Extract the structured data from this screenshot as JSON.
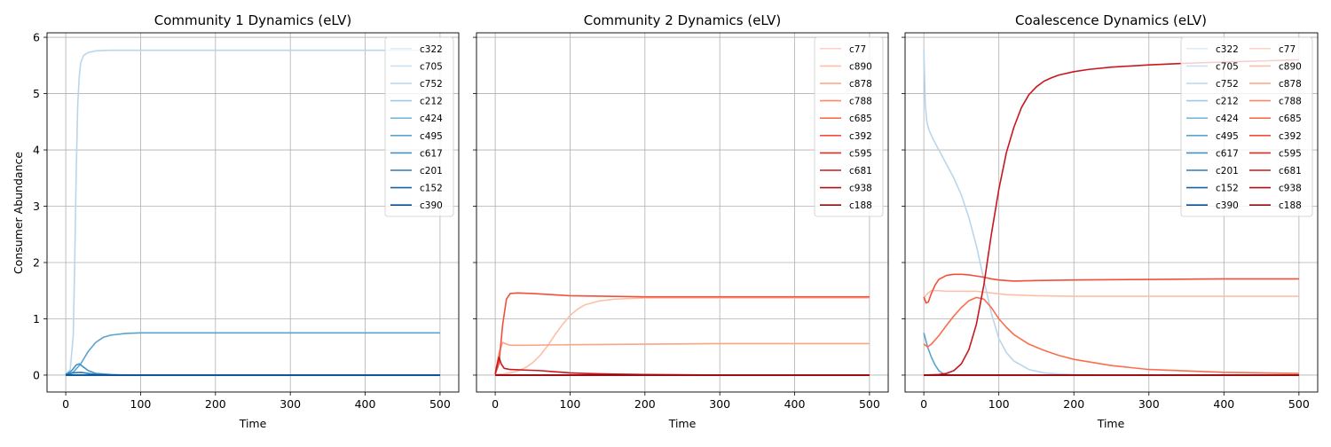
{
  "chart_data": [
    {
      "type": "line",
      "title": "Community 1 Dynamics (eLV)",
      "xlabel": "Time",
      "ylabel": "Consumer Abundance",
      "xlim": [
        -25,
        525
      ],
      "ylim": [
        -0.3,
        6.08
      ],
      "xticks": [
        0,
        100,
        200,
        300,
        400,
        500
      ],
      "xtick_labels": [
        "0",
        "100",
        "200",
        "300",
        "400",
        "500"
      ],
      "yticks": [
        0,
        1,
        2,
        3,
        4,
        5,
        6
      ],
      "ytick_labels": [
        "0",
        "1",
        "2",
        "3",
        "4",
        "5",
        "6"
      ],
      "grid": true,
      "legend": {
        "position": "top-right",
        "columns": 1
      },
      "series": [
        {
          "name": "c322",
          "color": "#deebf7",
          "x": [
            0,
            500
          ],
          "y": [
            0,
            0
          ]
        },
        {
          "name": "c705",
          "color": "#cddff1",
          "x": [
            0,
            500
          ],
          "y": [
            0,
            0
          ]
        },
        {
          "name": "c752",
          "color": "#bad6eb",
          "x": [
            0,
            6,
            10,
            12,
            14,
            16,
            18,
            20,
            24,
            30,
            40,
            60,
            80,
            100,
            200,
            300,
            400,
            500
          ],
          "y": [
            0.01,
            0.1,
            0.7,
            2.0,
            3.6,
            4.8,
            5.3,
            5.55,
            5.68,
            5.73,
            5.76,
            5.77,
            5.77,
            5.77,
            5.77,
            5.77,
            5.77,
            5.77
          ]
        },
        {
          "name": "c212",
          "color": "#9ecae1",
          "x": [
            0,
            500
          ],
          "y": [
            0,
            0
          ]
        },
        {
          "name": "c424",
          "color": "#7db8da",
          "x": [
            0,
            500
          ],
          "y": [
            0,
            0
          ]
        },
        {
          "name": "c495",
          "color": "#5ba3cf",
          "x": [
            0,
            10,
            20,
            30,
            40,
            50,
            60,
            80,
            100,
            150,
            200,
            300,
            400,
            500
          ],
          "y": [
            0.01,
            0.05,
            0.2,
            0.42,
            0.58,
            0.67,
            0.71,
            0.74,
            0.75,
            0.75,
            0.75,
            0.75,
            0.75,
            0.75
          ]
        },
        {
          "name": "c617",
          "color": "#4192c5",
          "x": [
            0,
            8,
            14,
            18,
            24,
            30,
            40,
            60,
            80,
            500
          ],
          "y": [
            0.01,
            0.08,
            0.18,
            0.2,
            0.14,
            0.08,
            0.03,
            0.01,
            0,
            0
          ]
        },
        {
          "name": "c201",
          "color": "#2b7bba",
          "x": [
            0,
            10,
            20,
            30,
            40,
            60,
            500
          ],
          "y": [
            0.01,
            0.04,
            0.05,
            0.03,
            0.01,
            0,
            0
          ]
        },
        {
          "name": "c152",
          "color": "#1764ab",
          "x": [
            0,
            500
          ],
          "y": [
            0,
            0
          ]
        },
        {
          "name": "c390",
          "color": "#084d96",
          "x": [
            0,
            500
          ],
          "y": [
            0,
            0
          ]
        }
      ]
    },
    {
      "type": "line",
      "title": "Community 2 Dynamics (eLV)",
      "xlabel": "Time",
      "ylabel": "",
      "xlim": [
        -25,
        525
      ],
      "ylim": [
        -0.3,
        6.08
      ],
      "xticks": [
        0,
        100,
        200,
        300,
        400,
        500
      ],
      "xtick_labels": [
        "0",
        "100",
        "200",
        "300",
        "400",
        "500"
      ],
      "yticks": [
        0,
        1,
        2,
        3,
        4,
        5,
        6
      ],
      "ytick_labels": [
        "",
        "",
        "",
        "",
        "",
        "",
        ""
      ],
      "grid": true,
      "legend": {
        "position": "top-right",
        "columns": 1
      },
      "series": [
        {
          "name": "c77",
          "color": "#fdd5c4",
          "x": [
            0,
            500
          ],
          "y": [
            0,
            0
          ]
        },
        {
          "name": "c890",
          "color": "#fcbfa7",
          "x": [
            0,
            10,
            20,
            30,
            40,
            50,
            60,
            70,
            80,
            90,
            100,
            110,
            120,
            140,
            160,
            180,
            200,
            300,
            400,
            500
          ],
          "y": [
            0.01,
            0.02,
            0.04,
            0.07,
            0.13,
            0.22,
            0.35,
            0.52,
            0.72,
            0.9,
            1.06,
            1.17,
            1.25,
            1.32,
            1.35,
            1.36,
            1.37,
            1.37,
            1.37,
            1.37
          ]
        },
        {
          "name": "c878",
          "color": "#fca486",
          "x": [
            0,
            5,
            10,
            15,
            20,
            40,
            100,
            200,
            300,
            400,
            500
          ],
          "y": [
            0.02,
            0.4,
            0.58,
            0.55,
            0.53,
            0.53,
            0.54,
            0.55,
            0.56,
            0.56,
            0.56
          ]
        },
        {
          "name": "c788",
          "color": "#fc8a6a",
          "x": [
            0,
            500
          ],
          "y": [
            0,
            0
          ]
        },
        {
          "name": "c685",
          "color": "#f96e4e",
          "x": [
            0,
            500
          ],
          "y": [
            0,
            0
          ]
        },
        {
          "name": "c392",
          "color": "#f14f39",
          "x": [
            0,
            5,
            10,
            15,
            20,
            30,
            50,
            100,
            200,
            300,
            400,
            500
          ],
          "y": [
            0.02,
            0.2,
            0.9,
            1.35,
            1.45,
            1.46,
            1.45,
            1.41,
            1.39,
            1.39,
            1.39,
            1.39
          ]
        },
        {
          "name": "c595",
          "color": "#de2b25",
          "x": [
            0,
            500
          ],
          "y": [
            0,
            0
          ]
        },
        {
          "name": "c681",
          "color": "#c8181d",
          "x": [
            0,
            2,
            5,
            8,
            12,
            20,
            40,
            60,
            80,
            100,
            120,
            150,
            200,
            300,
            500
          ],
          "y": [
            0.02,
            0.15,
            0.32,
            0.2,
            0.12,
            0.1,
            0.09,
            0.08,
            0.06,
            0.04,
            0.03,
            0.02,
            0.01,
            0,
            0
          ]
        },
        {
          "name": "c938",
          "color": "#b11117",
          "x": [
            0,
            500
          ],
          "y": [
            0,
            0
          ]
        },
        {
          "name": "c188",
          "color": "#900a12",
          "x": [
            0,
            500
          ],
          "y": [
            0,
            0
          ]
        }
      ]
    },
    {
      "type": "line",
      "title": "Coalescence Dynamics (eLV)",
      "xlabel": "Time",
      "ylabel": "",
      "xlim": [
        -25,
        525
      ],
      "ylim": [
        -0.3,
        6.08
      ],
      "xticks": [
        0,
        100,
        200,
        300,
        400,
        500
      ],
      "xtick_labels": [
        "0",
        "100",
        "200",
        "300",
        "400",
        "500"
      ],
      "yticks": [
        0,
        1,
        2,
        3,
        4,
        5,
        6
      ],
      "ytick_labels": [
        "",
        "",
        "",
        "",
        "",
        "",
        ""
      ],
      "grid": true,
      "legend": {
        "position": "top-right",
        "columns": 2
      },
      "series": [
        {
          "name": "c322",
          "color": "#deebf7",
          "x": [
            0,
            500
          ],
          "y": [
            0,
            0
          ]
        },
        {
          "name": "c705",
          "color": "#cddff1",
          "x": [
            0,
            500
          ],
          "y": [
            0,
            0
          ]
        },
        {
          "name": "c752",
          "color": "#bad6eb",
          "x": [
            0,
            1,
            2,
            4,
            7,
            12,
            20,
            30,
            40,
            50,
            60,
            70,
            80,
            90,
            100,
            110,
            120,
            140,
            160,
            180,
            200,
            250,
            500
          ],
          "y": [
            5.77,
            5.3,
            4.8,
            4.5,
            4.35,
            4.2,
            4.0,
            3.75,
            3.5,
            3.2,
            2.8,
            2.3,
            1.7,
            1.1,
            0.65,
            0.4,
            0.25,
            0.1,
            0.04,
            0.02,
            0.01,
            0,
            0
          ]
        },
        {
          "name": "c212",
          "color": "#9ecae1",
          "x": [
            0,
            500
          ],
          "y": [
            0,
            0
          ]
        },
        {
          "name": "c424",
          "color": "#7db8da",
          "x": [
            0,
            500
          ],
          "y": [
            0,
            0
          ]
        },
        {
          "name": "c495",
          "color": "#5ba3cf",
          "x": [
            0,
            5,
            10,
            15,
            20,
            25,
            30,
            40,
            500
          ],
          "y": [
            0.75,
            0.5,
            0.32,
            0.18,
            0.08,
            0.03,
            0.01,
            0,
            0
          ]
        },
        {
          "name": "c617",
          "color": "#4192c5",
          "x": [
            0,
            500
          ],
          "y": [
            0,
            0
          ]
        },
        {
          "name": "c201",
          "color": "#2b7bba",
          "x": [
            0,
            500
          ],
          "y": [
            0,
            0
          ]
        },
        {
          "name": "c152",
          "color": "#1764ab",
          "x": [
            0,
            500
          ],
          "y": [
            0,
            0
          ]
        },
        {
          "name": "c390",
          "color": "#084d96",
          "x": [
            0,
            500
          ],
          "y": [
            0,
            0
          ]
        },
        {
          "name": "c77",
          "color": "#fdd5c4",
          "x": [
            0,
            500
          ],
          "y": [
            0,
            0
          ]
        },
        {
          "name": "c890",
          "color": "#fcbfa7",
          "x": [
            0,
            5,
            10,
            20,
            30,
            50,
            70,
            90,
            110,
            150,
            200,
            300,
            400,
            500
          ],
          "y": [
            1.37,
            1.45,
            1.5,
            1.5,
            1.49,
            1.49,
            1.49,
            1.46,
            1.43,
            1.41,
            1.4,
            1.4,
            1.4,
            1.4
          ]
        },
        {
          "name": "c878",
          "color": "#fca486",
          "x": [
            0,
            500
          ],
          "y": [
            0,
            0
          ]
        },
        {
          "name": "c788",
          "color": "#fc8a6a",
          "x": [
            0,
            500
          ],
          "y": [
            0,
            0
          ]
        },
        {
          "name": "c685",
          "color": "#f96e4e",
          "x": [
            0,
            5,
            10,
            20,
            30,
            40,
            50,
            60,
            70,
            80,
            90,
            100,
            110,
            120,
            140,
            160,
            180,
            200,
            250,
            300,
            400,
            500
          ],
          "y": [
            0.55,
            0.5,
            0.55,
            0.7,
            0.88,
            1.05,
            1.2,
            1.32,
            1.38,
            1.35,
            1.2,
            1.0,
            0.85,
            0.72,
            0.55,
            0.44,
            0.35,
            0.28,
            0.17,
            0.1,
            0.05,
            0.03
          ]
        },
        {
          "name": "c392",
          "color": "#f14f39",
          "x": [
            0,
            3,
            6,
            10,
            15,
            20,
            30,
            40,
            50,
            60,
            70,
            80,
            90,
            100,
            110,
            120,
            150,
            200,
            300,
            400,
            500
          ],
          "y": [
            1.39,
            1.28,
            1.3,
            1.45,
            1.6,
            1.7,
            1.77,
            1.79,
            1.79,
            1.78,
            1.76,
            1.74,
            1.71,
            1.69,
            1.68,
            1.67,
            1.68,
            1.69,
            1.7,
            1.71,
            1.71
          ]
        },
        {
          "name": "c595",
          "color": "#de2b25",
          "x": [
            0,
            500
          ],
          "y": [
            0,
            0
          ]
        },
        {
          "name": "c681",
          "color": "#c8181d",
          "x": [
            0,
            20,
            30,
            40,
            50,
            60,
            70,
            80,
            90,
            100,
            110,
            120,
            130,
            140,
            150,
            160,
            170,
            180,
            200,
            220,
            250,
            300,
            350,
            400,
            450,
            500
          ],
          "y": [
            0,
            0.01,
            0.03,
            0.08,
            0.2,
            0.45,
            0.9,
            1.6,
            2.5,
            3.3,
            3.95,
            4.4,
            4.75,
            4.98,
            5.12,
            5.22,
            5.28,
            5.33,
            5.39,
            5.43,
            5.47,
            5.51,
            5.54,
            5.56,
            5.58,
            5.6
          ]
        },
        {
          "name": "c938",
          "color": "#b11117",
          "x": [
            0,
            500
          ],
          "y": [
            0,
            0
          ]
        },
        {
          "name": "c188",
          "color": "#900a12",
          "x": [
            0,
            500
          ],
          "y": [
            0,
            0
          ]
        }
      ]
    }
  ]
}
